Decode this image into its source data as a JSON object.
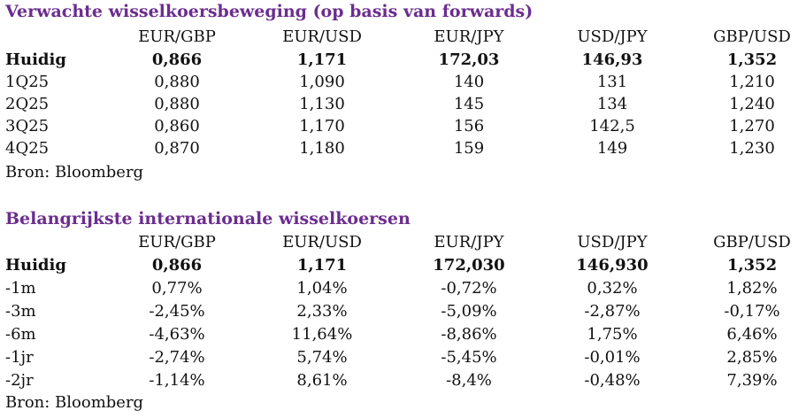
{
  "table1": {
    "title": "Verwachte wisselkoersbeweging (op basis van forwards)",
    "headers": [
      "EUR/GBP",
      "EUR/USD",
      "EUR/JPY",
      "USD/JPY",
      "GBP/USD"
    ],
    "rows": [
      {
        "label": "Huidig",
        "values": [
          "0,866",
          "1,171",
          "172,03",
          "146,93",
          "1,352"
        ]
      },
      {
        "label": "1Q25",
        "values": [
          "0,880",
          "1,090",
          "140",
          "131",
          "1,210"
        ]
      },
      {
        "label": "2Q25",
        "values": [
          "0,880",
          "1,130",
          "145",
          "134",
          "1,240"
        ]
      },
      {
        "label": "3Q25",
        "values": [
          "0,860",
          "1,170",
          "156",
          "142,5",
          "1,270"
        ]
      },
      {
        "label": "4Q25",
        "values": [
          "0,870",
          "1,180",
          "159",
          "149",
          "1,230"
        ]
      }
    ],
    "source": "Bron: Bloomberg"
  },
  "table2": {
    "title": "Belangrijkste internationale wisselkoersen",
    "headers": [
      "EUR/GBP",
      "EUR/USD",
      "EUR/JPY",
      "USD/JPY",
      "GBP/USD"
    ],
    "rows": [
      {
        "label": "Huidig",
        "values": [
          "0,866",
          "1,171",
          "172,030",
          "146,930",
          "1,352"
        ]
      },
      {
        "label": "-1m",
        "values": [
          "0,77%",
          "1,04%",
          "-0,72%",
          "0,32%",
          "1,82%"
        ]
      },
      {
        "label": "-3m",
        "values": [
          "-2,45%",
          "2,33%",
          "-5,09%",
          "-2,87%",
          "-0,17%"
        ]
      },
      {
        "label": "-6m",
        "values": [
          "-4,63%",
          "11,64%",
          "-8,86%",
          "1,75%",
          "6,46%"
        ]
      },
      {
        "label": "-1jr",
        "values": [
          "-2,74%",
          "5,74%",
          "-5,45%",
          "-0,01%",
          "2,85%"
        ]
      },
      {
        "label": "-2jr",
        "values": [
          "-1,14%",
          "8,61%",
          "-8,4%",
          "-0,48%",
          "7,39%"
        ]
      }
    ],
    "source": "Bron: Bloomberg"
  },
  "colors": {
    "title": "#6b2d8e",
    "text": "#111111"
  }
}
